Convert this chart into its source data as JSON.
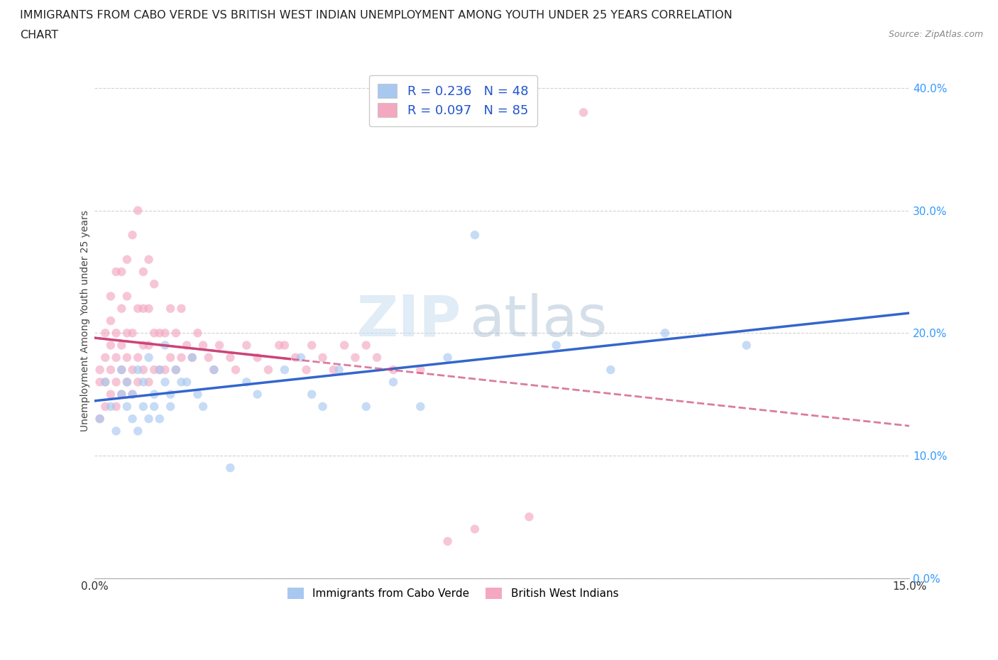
{
  "title_line1": "IMMIGRANTS FROM CABO VERDE VS BRITISH WEST INDIAN UNEMPLOYMENT AMONG YOUTH UNDER 25 YEARS CORRELATION",
  "title_line2": "CHART",
  "source": "Source: ZipAtlas.com",
  "ylabel": "Unemployment Among Youth under 25 years",
  "watermark": "ZIPatlas",
  "bottom_legend": [
    "Immigrants from Cabo Verde",
    "British West Indians"
  ],
  "xmin": 0.0,
  "xmax": 0.15,
  "ymin": 0.0,
  "ymax": 0.42,
  "yticks": [
    0.0,
    0.1,
    0.2,
    0.3,
    0.4
  ],
  "xtick_vals": [
    0.0,
    0.05,
    0.1,
    0.15
  ],
  "xtick_labels": [
    "0.0%",
    "",
    "",
    "15.0%"
  ],
  "blue_color": "#a8c8f0",
  "pink_color": "#f4a8c0",
  "blue_line_color": "#3366cc",
  "pink_line_color": "#cc4477",
  "bg_color": "#ffffff",
  "grid_color": "#cccccc",
  "title_fontsize": 11.5,
  "axis_label_fontsize": 10,
  "tick_fontsize": 11,
  "scatter_size": 80,
  "scatter_alpha": 0.65,
  "blue_scatter_x": [
    0.001,
    0.002,
    0.003,
    0.004,
    0.005,
    0.005,
    0.006,
    0.006,
    0.007,
    0.007,
    0.008,
    0.008,
    0.009,
    0.009,
    0.01,
    0.01,
    0.011,
    0.011,
    0.012,
    0.012,
    0.013,
    0.013,
    0.014,
    0.014,
    0.015,
    0.016,
    0.017,
    0.018,
    0.019,
    0.02,
    0.022,
    0.025,
    0.028,
    0.03,
    0.035,
    0.038,
    0.04,
    0.042,
    0.045,
    0.05,
    0.055,
    0.06,
    0.065,
    0.07,
    0.085,
    0.095,
    0.105,
    0.12
  ],
  "blue_scatter_y": [
    0.13,
    0.16,
    0.14,
    0.12,
    0.15,
    0.17,
    0.14,
    0.16,
    0.13,
    0.15,
    0.12,
    0.17,
    0.14,
    0.16,
    0.13,
    0.18,
    0.15,
    0.14,
    0.13,
    0.17,
    0.16,
    0.19,
    0.15,
    0.14,
    0.17,
    0.16,
    0.16,
    0.18,
    0.15,
    0.14,
    0.17,
    0.09,
    0.16,
    0.15,
    0.17,
    0.18,
    0.15,
    0.14,
    0.17,
    0.14,
    0.16,
    0.14,
    0.18,
    0.28,
    0.19,
    0.17,
    0.2,
    0.19
  ],
  "pink_scatter_x": [
    0.001,
    0.001,
    0.001,
    0.002,
    0.002,
    0.002,
    0.002,
    0.003,
    0.003,
    0.003,
    0.003,
    0.003,
    0.004,
    0.004,
    0.004,
    0.004,
    0.004,
    0.005,
    0.005,
    0.005,
    0.005,
    0.005,
    0.006,
    0.006,
    0.006,
    0.006,
    0.006,
    0.007,
    0.007,
    0.007,
    0.007,
    0.008,
    0.008,
    0.008,
    0.008,
    0.009,
    0.009,
    0.009,
    0.009,
    0.01,
    0.01,
    0.01,
    0.01,
    0.011,
    0.011,
    0.011,
    0.012,
    0.012,
    0.013,
    0.013,
    0.014,
    0.014,
    0.015,
    0.015,
    0.016,
    0.016,
    0.017,
    0.018,
    0.019,
    0.02,
    0.021,
    0.022,
    0.023,
    0.025,
    0.026,
    0.028,
    0.03,
    0.032,
    0.034,
    0.035,
    0.037,
    0.039,
    0.04,
    0.042,
    0.044,
    0.046,
    0.048,
    0.05,
    0.052,
    0.055,
    0.06,
    0.065,
    0.07,
    0.08,
    0.09
  ],
  "pink_scatter_y": [
    0.13,
    0.16,
    0.17,
    0.14,
    0.16,
    0.18,
    0.2,
    0.15,
    0.17,
    0.19,
    0.21,
    0.23,
    0.14,
    0.16,
    0.18,
    0.2,
    0.25,
    0.15,
    0.17,
    0.19,
    0.22,
    0.25,
    0.16,
    0.18,
    0.2,
    0.23,
    0.26,
    0.15,
    0.17,
    0.2,
    0.28,
    0.16,
    0.18,
    0.22,
    0.3,
    0.17,
    0.19,
    0.22,
    0.25,
    0.16,
    0.19,
    0.22,
    0.26,
    0.17,
    0.2,
    0.24,
    0.17,
    0.2,
    0.17,
    0.2,
    0.18,
    0.22,
    0.17,
    0.2,
    0.18,
    0.22,
    0.19,
    0.18,
    0.2,
    0.19,
    0.18,
    0.17,
    0.19,
    0.18,
    0.17,
    0.19,
    0.18,
    0.17,
    0.19,
    0.19,
    0.18,
    0.17,
    0.19,
    0.18,
    0.17,
    0.19,
    0.18,
    0.19,
    0.18,
    0.17,
    0.17,
    0.03,
    0.04,
    0.05,
    0.38
  ]
}
